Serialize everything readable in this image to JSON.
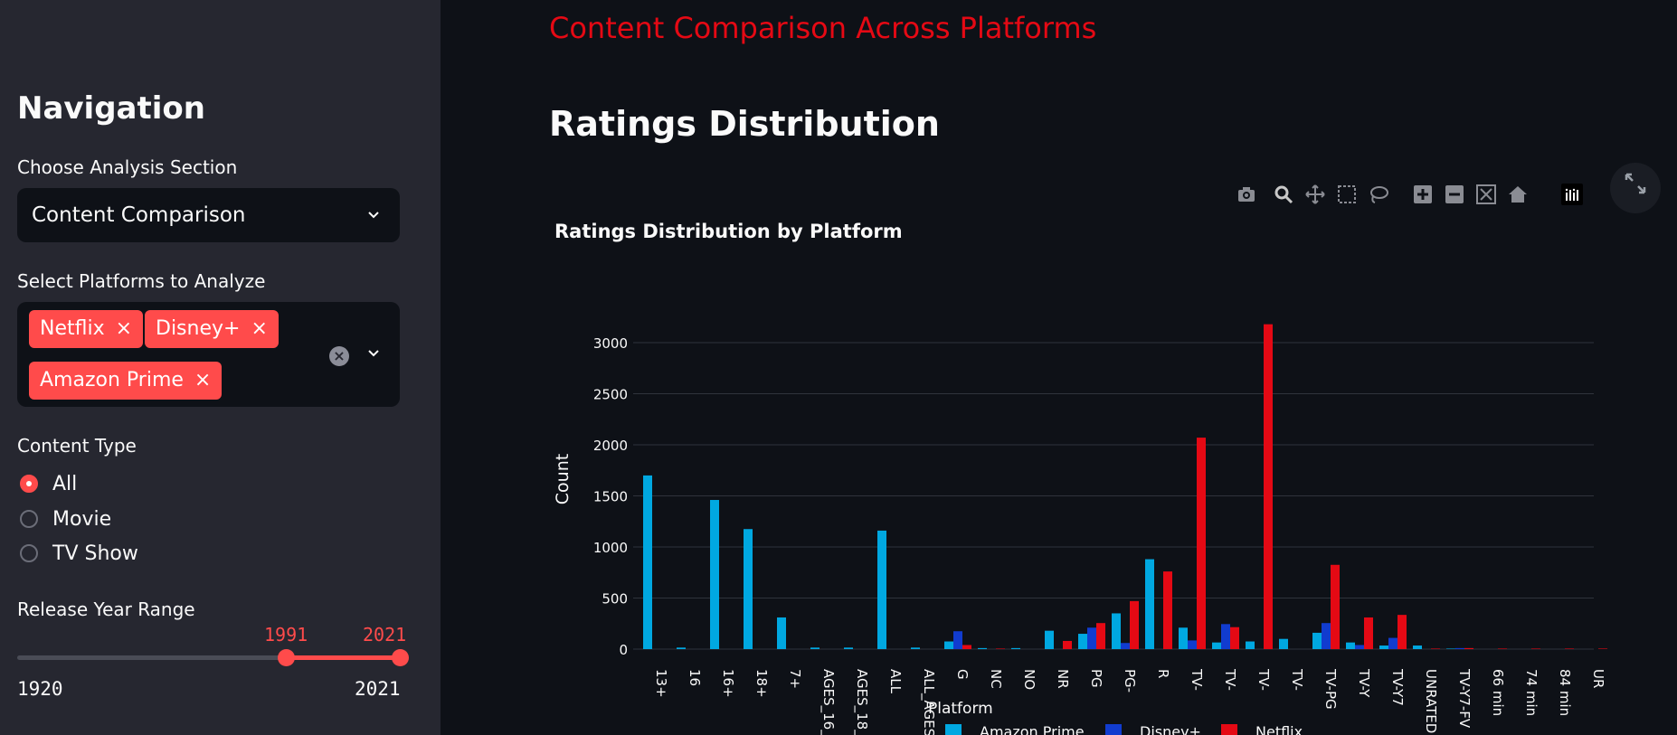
{
  "header": {
    "title": "Content Comparison Across Platforms"
  },
  "sidebar": {
    "title": "Navigation",
    "section_label": "Choose Analysis Section",
    "section_value": "Content Comparison",
    "platforms_label": "Select Platforms to Analyze",
    "platform_tags": [
      "Netflix",
      "Disney+",
      "Amazon Prime"
    ],
    "tag_remove_glyph": "×",
    "clear_glyph": "×",
    "content_type_label": "Content Type",
    "content_type_options": [
      "All",
      "Movie",
      "TV Show"
    ],
    "content_type_selected": "All",
    "year_label": "Release Year Range",
    "year_min": "1920",
    "year_max": "2021",
    "year_low": "1991",
    "year_high": "2021"
  },
  "main": {
    "section_title": "Ratings Distribution",
    "toolbar_icons": [
      "camera-icon",
      "zoom-icon",
      "pan-icon",
      "box-select-icon",
      "lasso-icon",
      "zoom-in-icon",
      "zoom-out-icon",
      "autoscale-icon",
      "reset-axes-icon",
      "plotly-logo-icon"
    ]
  },
  "colors": {
    "amazon": "#00a8e1",
    "disney": "#113ccf",
    "netflix": "#e50914",
    "accent": "#ff4b4b"
  },
  "chart_data": {
    "type": "bar",
    "title": "Ratings Distribution by Platform",
    "xlabel": "",
    "ylabel": "Count",
    "ylim": [
      0,
      3300
    ],
    "yticks": [
      0,
      500,
      1000,
      1500,
      2000,
      2500,
      3000
    ],
    "legend_title": "Platform",
    "legend_position": "bottom",
    "categories": [
      "13+",
      "16",
      "16+",
      "18+",
      "7+",
      "AGES_16_",
      "AGES_18_",
      "ALL",
      "ALL_AGES",
      "G",
      "NC",
      "NO",
      "NR",
      "PG",
      "PG-",
      "R",
      "TV-",
      "TV-",
      "TV-",
      "TV-",
      "TV-PG",
      "TV-Y",
      "TV-Y7",
      "UNRATED",
      "TV-Y7-FV",
      "66 min",
      "74 min",
      "84 min",
      "UR"
    ],
    "series": [
      {
        "name": "Amazon Prime",
        "color": "#00a8e1",
        "values": [
          1700,
          15,
          1460,
          1175,
          310,
          15,
          15,
          1160,
          15,
          75,
          10,
          10,
          180,
          150,
          350,
          880,
          210,
          65,
          75,
          100,
          160,
          65,
          35,
          35,
          5,
          0,
          0,
          0,
          0
        ]
      },
      {
        "name": "Disney+",
        "color": "#113ccf",
        "values": [
          0,
          0,
          0,
          0,
          0,
          0,
          0,
          0,
          0,
          175,
          0,
          0,
          0,
          210,
          60,
          0,
          85,
          245,
          0,
          0,
          255,
          40,
          110,
          0,
          10,
          0,
          0,
          0,
          0
        ]
      },
      {
        "name": "Netflix",
        "color": "#e50914",
        "values": [
          0,
          0,
          0,
          0,
          0,
          0,
          0,
          0,
          0,
          40,
          5,
          0,
          80,
          255,
          470,
          760,
          2070,
          215,
          3180,
          0,
          825,
          310,
          335,
          5,
          10,
          5,
          5,
          5,
          5
        ]
      }
    ]
  }
}
